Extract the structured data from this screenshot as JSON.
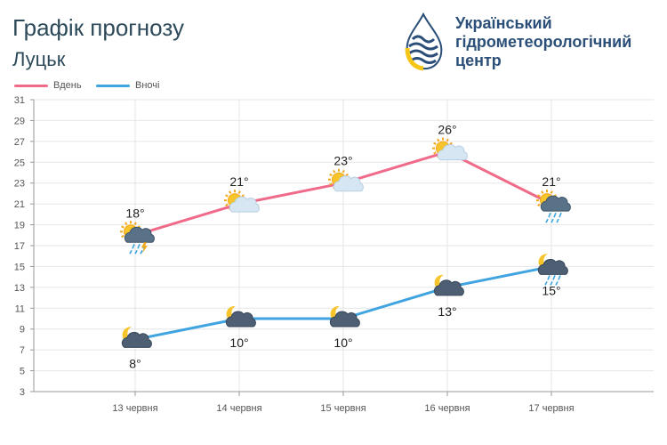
{
  "header": {
    "title": "Графік прогнозу",
    "city": "Луцьк"
  },
  "logo": {
    "line1": "Український",
    "line2": "гідрометеорологічний",
    "line3": "центр",
    "colors": {
      "text": "#2b4f78",
      "blue": "#2b4f78",
      "yellow": "#f5c518"
    }
  },
  "chart_data": {
    "type": "line",
    "categories": [
      "13 червня",
      "14 червня",
      "15 червня",
      "16 червня",
      "17 червня"
    ],
    "series": [
      {
        "name": "Вдень",
        "color": "#f06a8a",
        "values": [
          18,
          21,
          23,
          26,
          21
        ],
        "labels": [
          "18°",
          "21°",
          "23°",
          "26°",
          "21°"
        ],
        "icons": [
          "sun-thunder-rain-icon",
          "sun-cloud-icon",
          "sun-cloud-icon",
          "sun-cloud-icon",
          "sun-cloud-rain-icon"
        ]
      },
      {
        "name": "Вночі",
        "color": "#3fa4e0",
        "values": [
          8,
          10,
          10,
          13,
          15
        ],
        "labels": [
          "8°",
          "10°",
          "10°",
          "13°",
          "15°"
        ],
        "icons": [
          "moon-cloud-icon",
          "moon-cloud-icon",
          "moon-cloud-icon",
          "moon-cloud-icon",
          "moon-cloud-rain-icon"
        ]
      }
    ],
    "yticks": [
      3,
      5,
      7,
      9,
      11,
      13,
      15,
      17,
      19,
      21,
      23,
      25,
      27,
      29,
      31
    ],
    "ylim": [
      3,
      31
    ],
    "grid": true,
    "legend": "top-left"
  }
}
